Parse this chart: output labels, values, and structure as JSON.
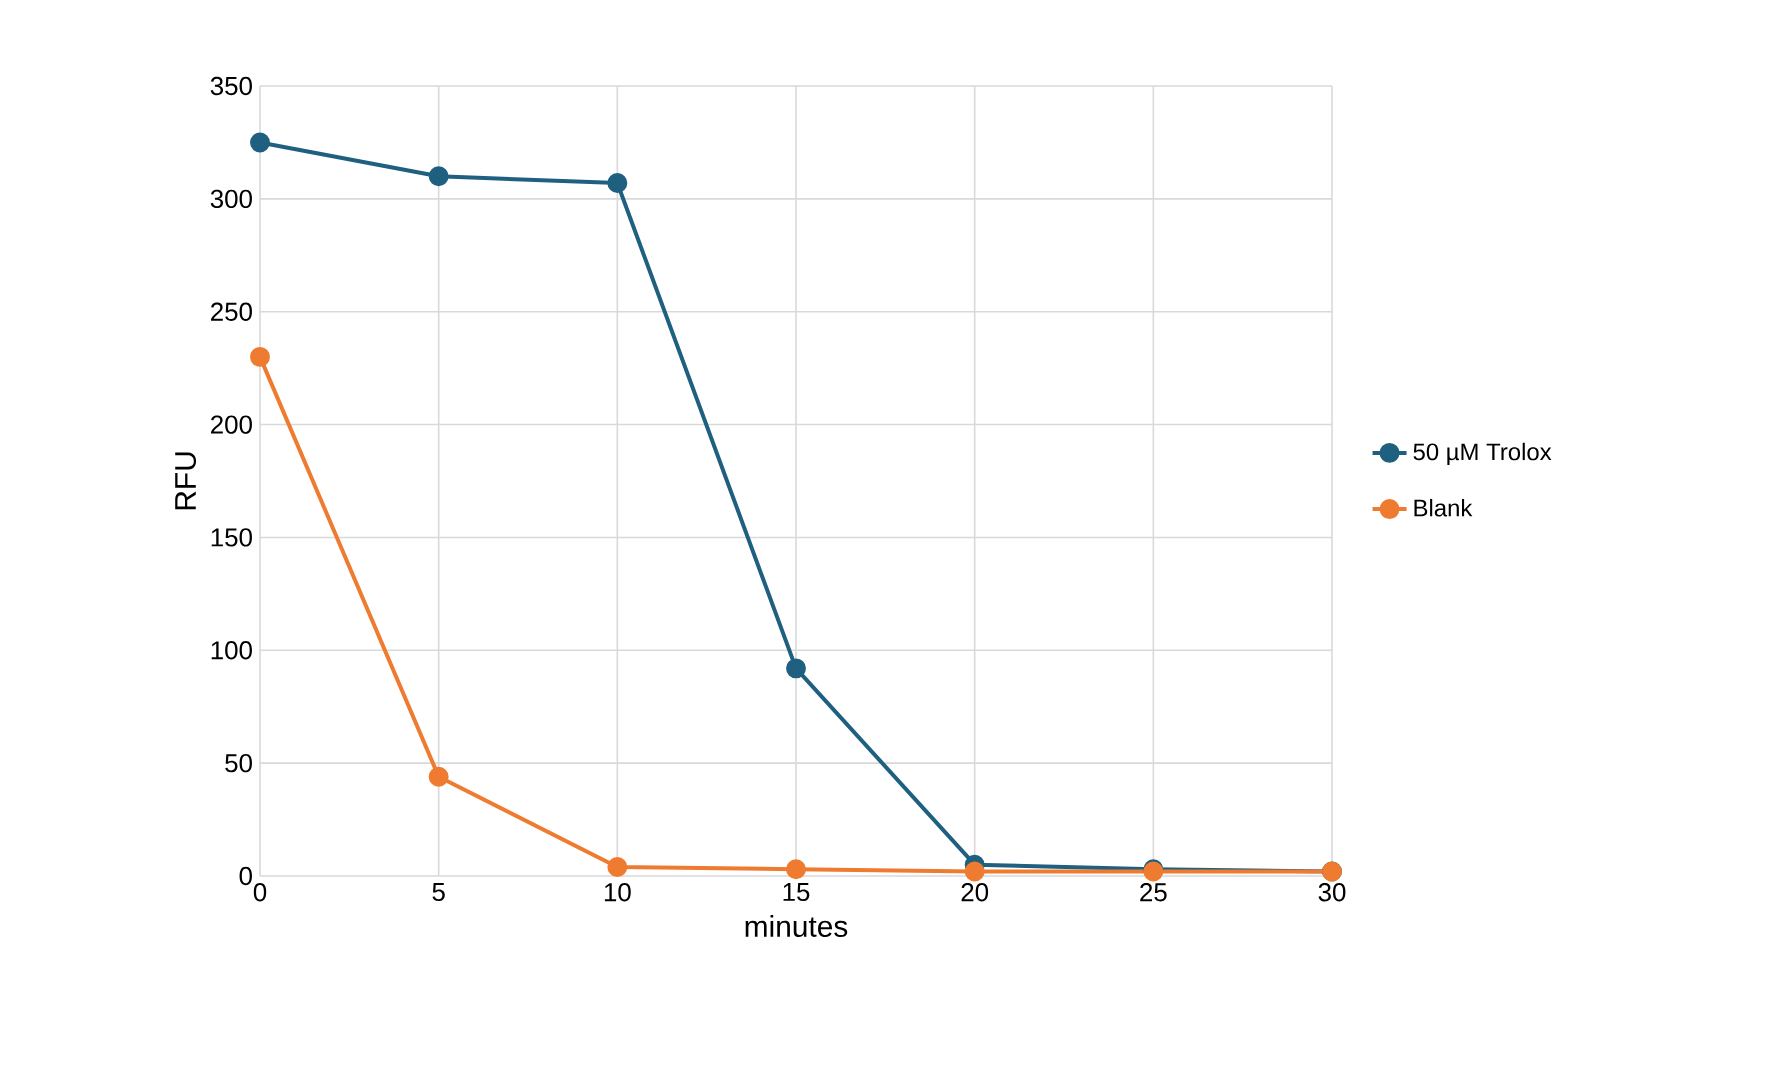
{
  "chart_data": {
    "type": "line",
    "xlabel": "minutes",
    "ylabel": "RFU",
    "x": [
      0,
      5,
      10,
      15,
      20,
      25,
      30
    ],
    "xlim": [
      0,
      30
    ],
    "ylim": [
      0,
      350
    ],
    "xticks": [
      0,
      5,
      10,
      15,
      20,
      25,
      30
    ],
    "yticks": [
      0,
      50,
      100,
      150,
      200,
      250,
      300,
      350
    ],
    "grid": true,
    "legend": "right",
    "marker": "circle",
    "line_style": "solid",
    "series": [
      {
        "name": "50 µM Trolox",
        "color": "#1f5f80",
        "values": [
          325,
          310,
          307,
          92,
          5,
          3,
          2
        ]
      },
      {
        "name": "Blank",
        "color": "#ee7b30",
        "values": [
          230,
          44,
          4,
          3,
          2,
          2,
          2
        ]
      }
    ]
  }
}
